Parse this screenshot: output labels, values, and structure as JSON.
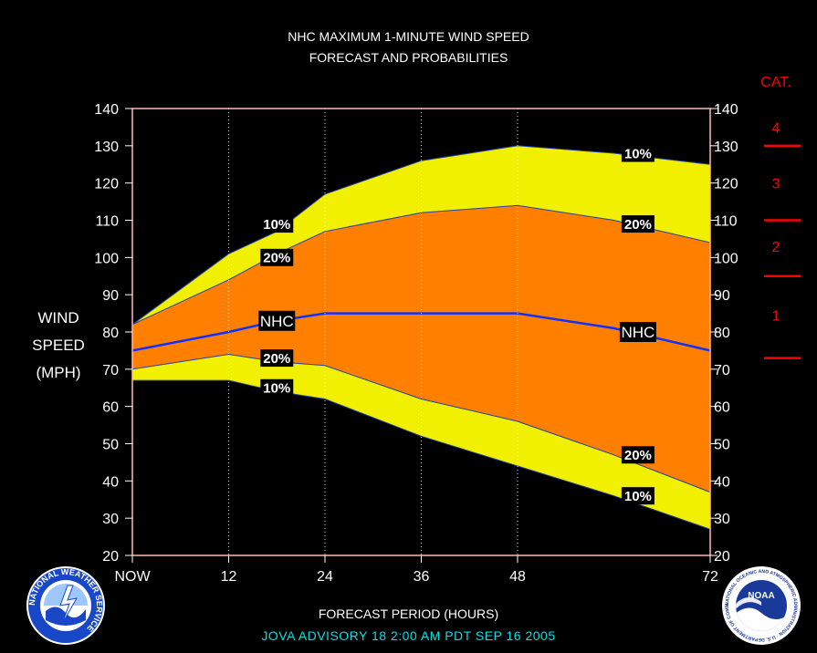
{
  "header": {
    "title_line1": "NHC MAXIMUM 1-MINUTE WIND SPEED",
    "title_line2": "FORECAST AND PROBABILITIES"
  },
  "y_axis_label": [
    "WIND",
    "SPEED",
    "(MPH)"
  ],
  "x_axis_title": "FORECAST PERIOD (HOURS)",
  "advisory_line": "JOVA   ADVISORY  18 2:00 AM PDT SEP 16 2005",
  "category_scale": {
    "title": "CAT.",
    "labels": [
      {
        "cat": "4",
        "y": 135
      },
      {
        "cat": "3",
        "y": 120
      },
      {
        "cat": "2",
        "y": 103
      },
      {
        "cat": "1",
        "y": 84.5
      }
    ],
    "boundaries": [
      130,
      110,
      95,
      73
    ],
    "color": "#ff0000"
  },
  "logos": {
    "left": {
      "name": "national-weather-service-logo",
      "text": "NATIONAL WEATHER SERVICE"
    },
    "right": {
      "name": "noaa-logo",
      "text": "NOAA",
      "ring_text": "NATIONAL OCEANIC AND ATMOSPHERIC ADMINISTRATION · U.S. DEPARTMENT OF COMMERCE"
    }
  },
  "chart_data": {
    "type": "area",
    "x": [
      0,
      12,
      18,
      24,
      36,
      48,
      60,
      72
    ],
    "x_tick_values": [
      0,
      12,
      24,
      36,
      48,
      72
    ],
    "x_tick_labels": [
      "NOW",
      "12",
      "24",
      "36",
      "48",
      "72"
    ],
    "xlim": [
      0,
      72
    ],
    "ylim": [
      20,
      140
    ],
    "y_ticks": [
      20,
      30,
      40,
      50,
      60,
      70,
      80,
      90,
      100,
      110,
      120,
      130,
      140
    ],
    "grid": "vertical dotted at 12, 24, 36, 48",
    "series": [
      {
        "name": "10%",
        "values": [
          82,
          101,
          107,
          117,
          126,
          130,
          128,
          125
        ]
      },
      {
        "name": "20%",
        "values": [
          82,
          94,
          101,
          107,
          112,
          114,
          110,
          104
        ]
      },
      {
        "name": "NHC",
        "values": [
          75,
          80,
          83,
          85,
          85,
          85,
          81,
          75
        ]
      },
      {
        "name": "20%",
        "values": [
          70,
          74,
          72,
          71,
          62,
          56,
          47,
          37
        ]
      },
      {
        "name": "10%",
        "values": [
          67,
          67,
          64,
          62,
          52,
          44,
          36,
          27
        ]
      }
    ],
    "series_labels": [
      {
        "text": "10%",
        "x": 18,
        "y": 109
      },
      {
        "text": "20%",
        "x": 18,
        "y": 100
      },
      {
        "text": "NHC",
        "x": 18,
        "y": 83
      },
      {
        "text": "20%",
        "x": 18,
        "y": 73
      },
      {
        "text": "10%",
        "x": 18,
        "y": 65
      },
      {
        "text": "10%",
        "x": 63,
        "y": 128
      },
      {
        "text": "20%",
        "x": 63,
        "y": 109
      },
      {
        "text": "NHC",
        "x": 63,
        "y": 80
      },
      {
        "text": "20%",
        "x": 63,
        "y": 47
      },
      {
        "text": "10%",
        "x": 63,
        "y": 36
      }
    ],
    "colors": {
      "outer_band": "#f0f000",
      "inner_band": "#ff8000",
      "nhc_line": "#1030ff",
      "band_edge": "#2040a0",
      "frame": "#ffb8b8",
      "label_bg": "#000000",
      "label_text": "#ffffff"
    }
  }
}
